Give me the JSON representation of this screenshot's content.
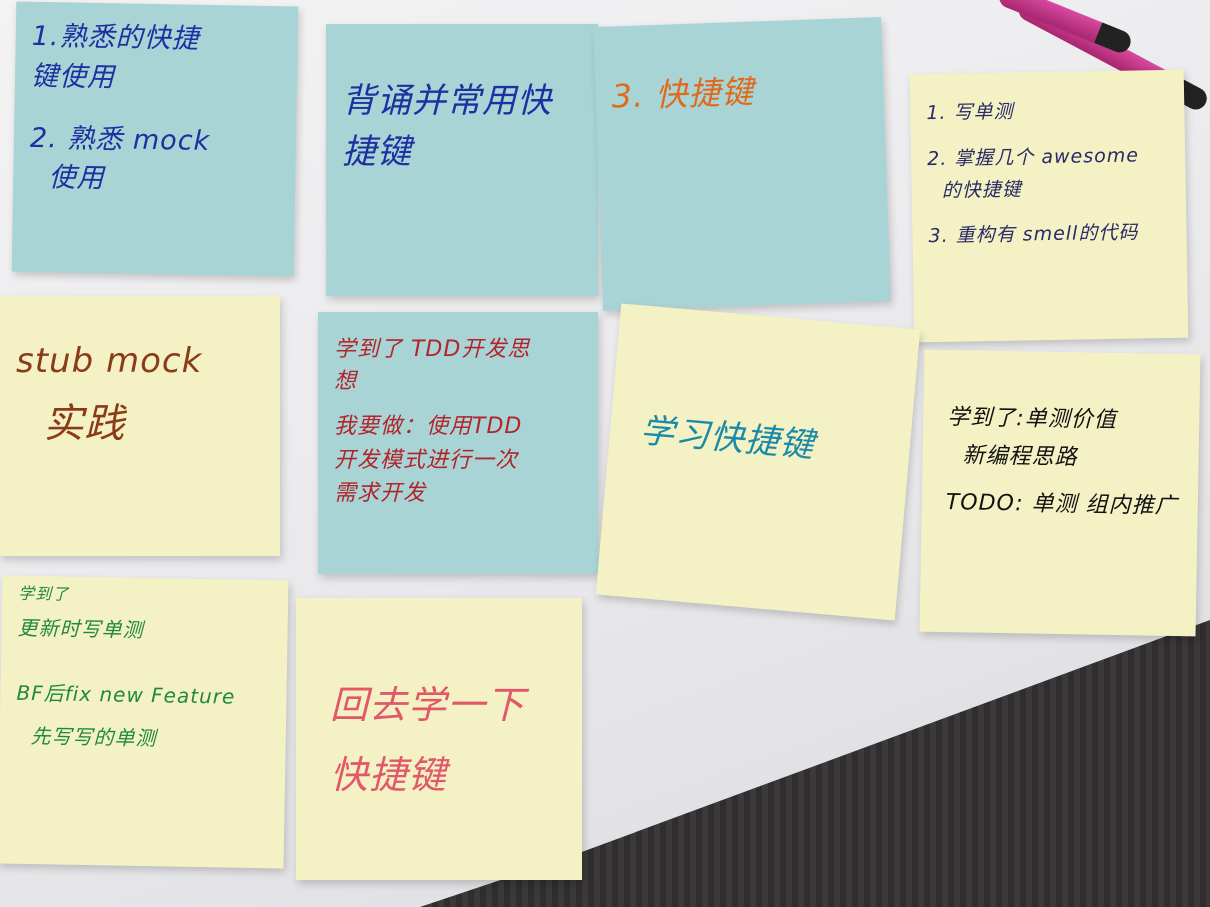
{
  "notes": [
    {
      "id": "n1",
      "color": "blue",
      "ink": "#1f2fa0",
      "lines": [
        "1.熟悉的快捷",
        "键使用",
        "2. 熟悉 mock",
        "  使用"
      ]
    },
    {
      "id": "n2",
      "color": "blue",
      "ink": "#1f2fa0",
      "lines": [
        "背诵并常用快",
        "捷键"
      ]
    },
    {
      "id": "n3",
      "color": "blue",
      "ink": "#e06a1a",
      "lines": [
        "3. 快捷键"
      ]
    },
    {
      "id": "n4",
      "color": "yellow",
      "ink": "#2a2a66",
      "lines": [
        "1. 写单测",
        "2. 掌握几个 awesome",
        "  的快捷键",
        "3. 重构有 smell的代码"
      ]
    },
    {
      "id": "n5",
      "color": "yellow",
      "ink": "#8a3b1a",
      "lines": [
        "stub mock",
        "  实践"
      ]
    },
    {
      "id": "n6",
      "color": "blue",
      "ink": "#b2242a",
      "lines": [
        "学到了 TDD开发思",
        "想",
        "我要做：使用TDD",
        "开发模式进行一次",
        "需求开发"
      ]
    },
    {
      "id": "n7",
      "color": "yellow",
      "ink": "#1a8aa8",
      "lines": [
        "学习快捷键"
      ]
    },
    {
      "id": "n8",
      "color": "yellow",
      "ink": "#111111",
      "lines": [
        "学到了:单测价值",
        "  新编程思路",
        "TODO: 单测 组内推广"
      ]
    },
    {
      "id": "n9",
      "color": "yellow",
      "ink": "#1f8a3a",
      "lines": [
        "学到了",
        "更新时写单测",
        "BF后fix new Feature",
        "  先写写的单测"
      ]
    },
    {
      "id": "n10",
      "color": "yellow",
      "ink": "#e0586a",
      "lines": [
        "回去学一下",
        "快捷键"
      ]
    }
  ]
}
